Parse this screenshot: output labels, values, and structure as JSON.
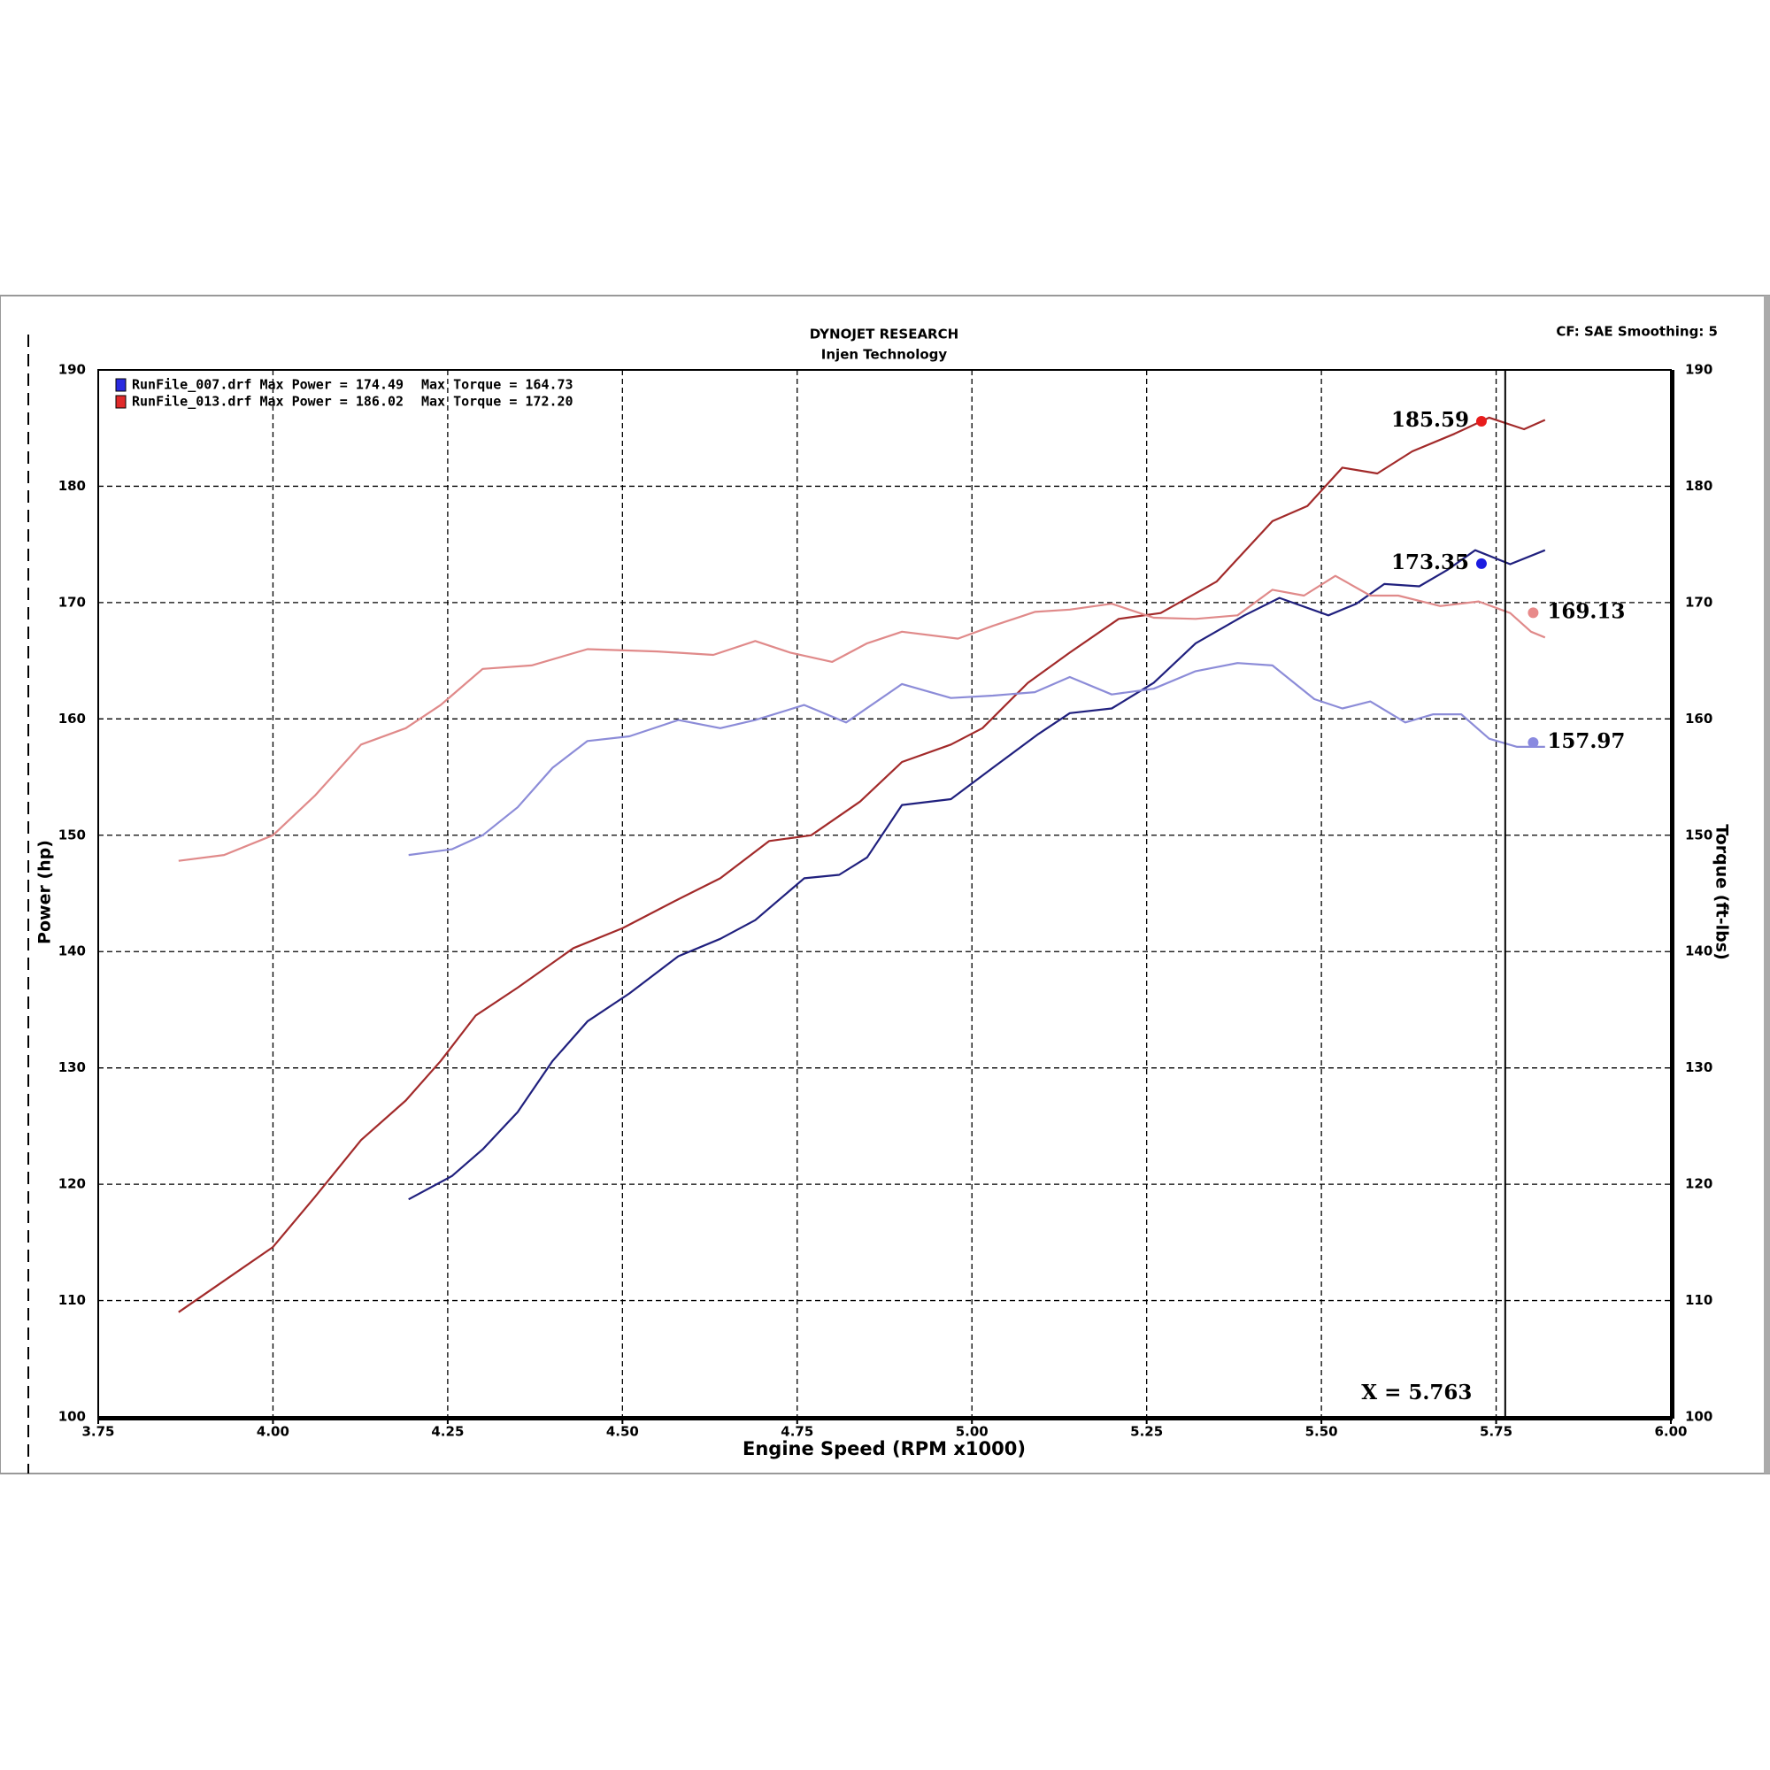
{
  "chart_data": {
    "type": "line",
    "title": "DYNOJET RESEARCH",
    "subtitle": "Injen Technology",
    "settings_text": "CF: SAE  Smoothing: 5",
    "xlabel": "Engine Speed (RPM x1000)",
    "ylabel": "Power (hp)",
    "y2label": "Torque (ft-lbs)",
    "xlim": [
      3.75,
      6.0
    ],
    "xticks": [
      {
        "value": 3.75,
        "label": "3.75"
      },
      {
        "value": 4.0,
        "label": "4.00"
      },
      {
        "value": 4.25,
        "label": "4.25"
      },
      {
        "value": 4.5,
        "label": "4.50"
      },
      {
        "value": 4.75,
        "label": "4.75"
      },
      {
        "value": 5.0,
        "label": "5.00"
      },
      {
        "value": 5.25,
        "label": "5.25"
      },
      {
        "value": 5.5,
        "label": "5.50"
      },
      {
        "value": 5.75,
        "label": "5.75"
      },
      {
        "value": 6.0,
        "label": "6.00"
      }
    ],
    "ylim": [
      100,
      190
    ],
    "yticks": [
      100,
      110,
      120,
      130,
      140,
      150,
      160,
      170,
      180,
      190
    ],
    "y2lim": [
      100,
      190
    ],
    "y2ticks": [
      100,
      110,
      120,
      130,
      140,
      150,
      160,
      170,
      180,
      190
    ],
    "grid": true,
    "legend": [
      {
        "label": "RunFile_007.drf Max Power = 174.49",
        "torque": "Max Torque = 164.73",
        "color": "#2a2ae0"
      },
      {
        "label": "RunFile_013.drf Max Power = 186.02",
        "torque": "Max Torque = 172.20",
        "color": "#e02a2a"
      }
    ],
    "series": [
      {
        "color": "#a22a2a",
        "axis": "y",
        "x": [
          3.865,
          3.93,
          4.0,
          4.06,
          4.126,
          4.19,
          4.24,
          4.29,
          4.35,
          4.43,
          4.5,
          4.58,
          4.64,
          4.71,
          4.77,
          4.84,
          4.9,
          4.97,
          5.015,
          5.08,
          5.14,
          5.21,
          5.27,
          5.35,
          5.43,
          5.48,
          5.53,
          5.58,
          5.63,
          5.69,
          5.74,
          5.79,
          5.82
        ],
        "values": [
          109.0,
          111.7,
          114.6,
          118.9,
          123.8,
          127.2,
          130.6,
          134.5,
          136.9,
          140.3,
          142.0,
          144.5,
          146.3,
          149.5,
          150.0,
          152.9,
          156.3,
          157.8,
          159.2,
          163.1,
          165.7,
          168.6,
          169.1,
          171.8,
          177.0,
          178.3,
          181.6,
          181.1,
          183.0,
          184.5,
          185.9,
          184.9,
          185.7
        ]
      },
      {
        "color": "#20207e",
        "axis": "y",
        "x": [
          4.194,
          4.256,
          4.3,
          4.35,
          4.4,
          4.45,
          4.51,
          4.58,
          4.64,
          4.69,
          4.76,
          4.81,
          4.85,
          4.9,
          4.97,
          5.03,
          5.095,
          5.14,
          5.2,
          5.26,
          5.32,
          5.39,
          5.44,
          5.51,
          5.55,
          5.59,
          5.64,
          5.68,
          5.72,
          5.77,
          5.82
        ],
        "values": [
          118.7,
          120.7,
          123.0,
          126.2,
          130.6,
          134.0,
          136.4,
          139.6,
          141.1,
          142.7,
          146.3,
          146.6,
          148.1,
          152.6,
          153.1,
          155.8,
          158.7,
          160.5,
          160.9,
          163.1,
          166.5,
          168.9,
          170.4,
          168.9,
          169.9,
          171.6,
          171.4,
          172.8,
          174.5,
          173.3,
          174.5
        ]
      },
      {
        "color": "#e08a8a",
        "axis": "y2",
        "x": [
          3.865,
          3.93,
          4.0,
          4.06,
          4.126,
          4.19,
          4.24,
          4.3,
          4.37,
          4.45,
          4.55,
          4.63,
          4.69,
          4.74,
          4.8,
          4.85,
          4.9,
          4.98,
          5.03,
          5.09,
          5.14,
          5.2,
          5.26,
          5.32,
          5.38,
          5.43,
          5.475,
          5.52,
          5.57,
          5.61,
          5.67,
          5.725,
          5.77,
          5.8,
          5.82
        ],
        "values": [
          147.8,
          148.3,
          150.0,
          153.4,
          157.8,
          159.2,
          161.2,
          164.3,
          164.6,
          166.0,
          165.8,
          165.5,
          166.7,
          165.7,
          164.9,
          166.5,
          167.5,
          166.9,
          168.0,
          169.2,
          169.4,
          169.9,
          168.7,
          168.6,
          168.9,
          171.1,
          170.6,
          172.3,
          170.6,
          170.6,
          169.7,
          170.1,
          169.1,
          167.5,
          167.0
        ]
      },
      {
        "color": "#8c8cd8",
        "axis": "y2",
        "x": [
          4.194,
          4.256,
          4.3,
          4.35,
          4.4,
          4.45,
          4.51,
          4.58,
          4.64,
          4.69,
          4.76,
          4.82,
          4.9,
          4.97,
          5.03,
          5.09,
          5.14,
          5.2,
          5.26,
          5.32,
          5.38,
          5.43,
          5.49,
          5.53,
          5.57,
          5.62,
          5.66,
          5.7,
          5.74,
          5.78,
          5.82
        ],
        "values": [
          148.3,
          148.8,
          150.0,
          152.4,
          155.8,
          158.1,
          158.5,
          159.9,
          159.2,
          159.9,
          161.2,
          159.7,
          163.0,
          161.8,
          162.0,
          162.3,
          163.6,
          162.1,
          162.6,
          164.1,
          164.8,
          164.6,
          161.7,
          160.9,
          161.5,
          159.7,
          160.4,
          160.4,
          158.3,
          157.6,
          157.6
        ]
      }
    ],
    "cursor": {
      "x": 5.763,
      "label": "X = 5.763"
    },
    "markers": [
      {
        "x": 5.729,
        "y": 185.59,
        "color": "#e81c1c",
        "side": "left",
        "axis": "y"
      },
      {
        "x": 5.729,
        "y": 173.35,
        "color": "#1c1ce0",
        "side": "left",
        "axis": "y"
      },
      {
        "x": 5.803,
        "y": 169.13,
        "color": "#e88a8a",
        "side": "right",
        "axis": "y2"
      },
      {
        "x": 5.803,
        "y": 157.97,
        "color": "#8a8ae0",
        "side": "right",
        "axis": "y2"
      }
    ]
  }
}
